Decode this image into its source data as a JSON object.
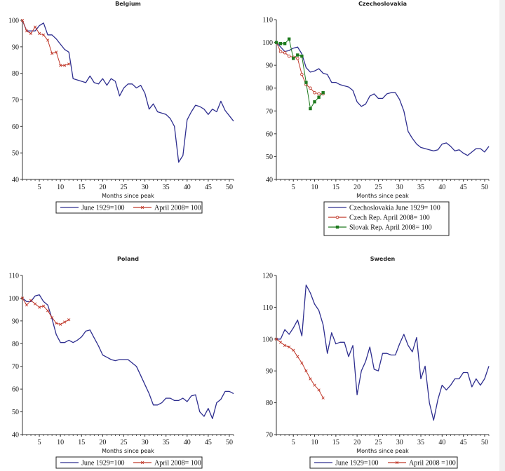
{
  "chart_data": [
    {
      "id": "belgium",
      "type": "line",
      "title": "Belgium",
      "xlabel": "Months since peak",
      "ylabel": "",
      "xlim": [
        1,
        51
      ],
      "ylim": [
        40,
        100
      ],
      "xticks": [
        5,
        10,
        15,
        20,
        25,
        30,
        35,
        40,
        45,
        50
      ],
      "yticks": [
        40,
        50,
        60,
        70,
        80,
        90,
        100
      ],
      "legend": "bottom",
      "series": [
        {
          "name": "June 1929=100",
          "color": "#2e2e8f",
          "marker": "none",
          "x": [
            1,
            2,
            3,
            4,
            5,
            6,
            7,
            8,
            9,
            10,
            11,
            12,
            13,
            14,
            15,
            16,
            17,
            18,
            19,
            20,
            21,
            22,
            23,
            24,
            25,
            26,
            27,
            28,
            29,
            30,
            31,
            32,
            33,
            34,
            35,
            36,
            37,
            38,
            39,
            40,
            41,
            42,
            43,
            44,
            45,
            46,
            47,
            48,
            49,
            50,
            51
          ],
          "y": [
            100,
            96,
            96,
            96,
            98,
            99,
            94.5,
            94.5,
            93,
            91,
            89,
            88,
            78,
            77.5,
            77,
            76.5,
            79,
            76.5,
            76,
            78,
            75.5,
            78,
            77,
            71.5,
            74.5,
            76,
            76,
            74.5,
            75.5,
            72.5,
            66.5,
            68.5,
            65.5,
            65,
            64.5,
            63,
            60,
            46.5,
            49,
            62.5,
            65.5,
            68,
            67.5,
            66.5,
            64.5,
            66.5,
            65.5,
            69.5,
            66,
            64,
            62
          ]
        },
        {
          "name": "April 2008= 100",
          "color": "#c0392b",
          "marker": "cross",
          "x": [
            1,
            2,
            3,
            4,
            5,
            6,
            7,
            8,
            9,
            10,
            11,
            12
          ],
          "y": [
            100,
            96,
            95,
            97.5,
            95,
            94.5,
            92.5,
            87.5,
            88,
            83,
            83,
            83.5
          ]
        }
      ]
    },
    {
      "id": "czechoslovakia",
      "type": "line",
      "title": "Czechoslovakia",
      "xlabel": "Months since peak",
      "ylabel": "",
      "xlim": [
        1,
        51
      ],
      "ylim": [
        40,
        110
      ],
      "xticks": [
        5,
        10,
        15,
        20,
        25,
        30,
        35,
        40,
        45,
        50
      ],
      "yticks": [
        40,
        50,
        60,
        70,
        80,
        90,
        100,
        110
      ],
      "legend": "bottom",
      "series": [
        {
          "name": "Czechoslovakia June 1929= 100",
          "color": "#2e2e8f",
          "marker": "none",
          "x": [
            1,
            2,
            3,
            4,
            5,
            6,
            7,
            8,
            9,
            10,
            11,
            12,
            13,
            14,
            15,
            16,
            17,
            18,
            19,
            20,
            21,
            22,
            23,
            24,
            25,
            26,
            27,
            28,
            29,
            30,
            31,
            32,
            33,
            34,
            35,
            36,
            37,
            38,
            39,
            40,
            41,
            42,
            43,
            44,
            45,
            46,
            47,
            48,
            49,
            50,
            51
          ],
          "y": [
            100,
            98,
            96,
            96.5,
            97.5,
            98,
            95,
            89,
            87,
            87.5,
            88.5,
            86.5,
            86,
            82.5,
            82.5,
            81.5,
            81,
            80.5,
            79,
            74,
            72,
            73,
            76.5,
            77.5,
            75.5,
            75.5,
            77.5,
            78,
            78,
            75,
            70,
            61,
            58,
            55.5,
            54,
            53.5,
            53,
            52.5,
            53,
            55.5,
            56,
            54.5,
            52.5,
            53,
            51.5,
            50.5,
            52,
            53.5,
            53.5,
            52,
            54.5
          ]
        },
        {
          "name": "Czech Rep. April 2008= 100",
          "color": "#c0392b",
          "marker": "circle",
          "x": [
            1,
            2,
            3,
            4,
            5,
            6,
            7,
            8,
            9,
            10,
            11,
            12
          ],
          "y": [
            100,
            96,
            95.5,
            94,
            93.5,
            93,
            86,
            81.5,
            80,
            78,
            77.5,
            77.5
          ]
        },
        {
          "name": "Slovak Rep. April 2008= 100",
          "color": "#1e7a1e",
          "marker": "square",
          "x": [
            1,
            2,
            3,
            4,
            5,
            6,
            7,
            8,
            9,
            10,
            11,
            12
          ],
          "y": [
            100,
            99.5,
            99.5,
            101.5,
            93,
            94.5,
            94,
            82.5,
            71,
            74,
            76,
            78
          ]
        }
      ]
    },
    {
      "id": "poland",
      "type": "line",
      "title": "Poland",
      "xlabel": "Months since peak",
      "ylabel": "",
      "xlim": [
        1,
        51
      ],
      "ylim": [
        40,
        110
      ],
      "xticks": [
        5,
        10,
        15,
        20,
        25,
        30,
        35,
        40,
        45,
        50
      ],
      "yticks": [
        40,
        50,
        60,
        70,
        80,
        90,
        100,
        110
      ],
      "legend": "bottom",
      "series": [
        {
          "name": "June 1929=100",
          "color": "#2e2e8f",
          "marker": "none",
          "x": [
            1,
            2,
            3,
            4,
            5,
            6,
            7,
            8,
            9,
            10,
            11,
            12,
            13,
            14,
            15,
            16,
            17,
            18,
            19,
            20,
            21,
            22,
            23,
            24,
            25,
            26,
            27,
            28,
            29,
            30,
            31,
            32,
            33,
            34,
            35,
            36,
            37,
            38,
            39,
            40,
            41,
            42,
            43,
            44,
            45,
            46,
            47,
            48,
            49,
            50,
            51
          ],
          "y": [
            100,
            98.5,
            98.5,
            101,
            101.5,
            98.5,
            97,
            91,
            84,
            80.5,
            80.5,
            81.5,
            80.5,
            81.5,
            83,
            85.5,
            86,
            82.5,
            79,
            75,
            74,
            73,
            72.5,
            73,
            73,
            73,
            71.5,
            70,
            66,
            62,
            58,
            53,
            53,
            54,
            56,
            56,
            55,
            55,
            56,
            54.5,
            57,
            57.5,
            50,
            48,
            51.5,
            47,
            54,
            55.5,
            59,
            59,
            58
          ]
        },
        {
          "name": "April 2008= 100",
          "color": "#c0392b",
          "marker": "cross",
          "x": [
            1,
            2,
            3,
            4,
            5,
            6,
            7,
            8,
            9,
            10,
            11,
            12
          ],
          "y": [
            100,
            97,
            99,
            97.5,
            96,
            96.5,
            94.5,
            91.5,
            89,
            88.5,
            89.5,
            90.5
          ]
        }
      ]
    },
    {
      "id": "sweden",
      "type": "line",
      "title": "Sweden",
      "xlabel": "Months since peak",
      "ylabel": "",
      "xlim": [
        1,
        51
      ],
      "ylim": [
        70,
        120
      ],
      "xticks": [
        5,
        10,
        15,
        20,
        25,
        30,
        35,
        40,
        45,
        50
      ],
      "yticks": [
        70,
        80,
        90,
        100,
        110,
        120
      ],
      "legend": "bottom",
      "series": [
        {
          "name": "June 1929=100",
          "color": "#2e2e8f",
          "marker": "none",
          "x": [
            1,
            2,
            3,
            4,
            5,
            6,
            7,
            8,
            9,
            10,
            11,
            12,
            13,
            14,
            15,
            16,
            17,
            18,
            19,
            20,
            21,
            22,
            23,
            24,
            25,
            26,
            27,
            28,
            29,
            30,
            31,
            32,
            33,
            34,
            35,
            36,
            37,
            38,
            39,
            40,
            41,
            42,
            43,
            44,
            45,
            46,
            47,
            48,
            49,
            50,
            51
          ],
          "y": [
            100,
            100,
            103,
            101.5,
            103.5,
            106,
            101,
            117,
            114.5,
            111,
            109,
            104.5,
            95.5,
            102,
            98.5,
            99,
            99,
            94.5,
            98,
            82.5,
            90,
            93,
            97.5,
            90.5,
            90,
            95.5,
            95.5,
            95,
            95,
            98.5,
            101.5,
            98,
            96,
            100.5,
            87.5,
            91.5,
            80,
            74.5,
            81,
            85.5,
            84,
            85.5,
            87.5,
            87.5,
            89.5,
            89.5,
            85,
            87.5,
            85.5,
            87.5,
            91.5
          ]
        },
        {
          "name": "April 2008 =100",
          "color": "#c0392b",
          "marker": "cross",
          "x": [
            1,
            2,
            3,
            4,
            5,
            6,
            7,
            8,
            9,
            10,
            11,
            12
          ],
          "y": [
            100,
            99,
            98,
            97.5,
            96.5,
            94.5,
            92.5,
            90,
            87.5,
            85.5,
            84,
            81.5
          ]
        }
      ]
    }
  ]
}
